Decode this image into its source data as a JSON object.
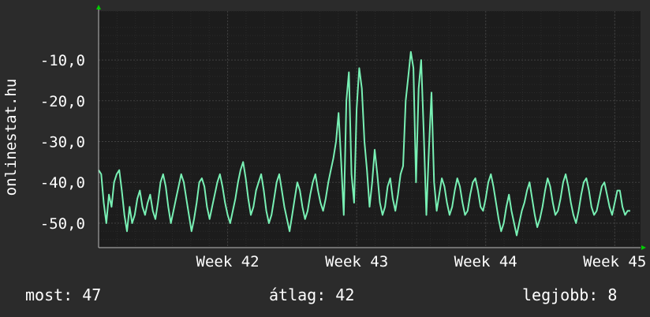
{
  "chart_data": {
    "type": "line",
    "title": "",
    "xlabel": "",
    "ylabel": "onlinestat.hu",
    "ylim": [
      -56,
      2
    ],
    "y_ticks": [
      -10,
      -20,
      -30,
      -40,
      -50
    ],
    "y_tick_labels": [
      "-10,0",
      "-20,0",
      "-30,0",
      "-40,0",
      "-50,0"
    ],
    "x_ticks": [
      42,
      43,
      44,
      45
    ],
    "x_tick_labels": [
      "Week 42",
      "Week 43",
      "Week 44",
      "Week 45"
    ],
    "xlim": [
      41.0,
      45.2
    ],
    "grid": true,
    "colors": {
      "background": "#2b2b2b",
      "plot_background": "#1c1c1c",
      "grid_major": "#3f3f3f",
      "grid_minor": "#2a2a2a",
      "line": "#78f0b4",
      "axis_arrow": "#00cc00"
    },
    "series": [
      {
        "x": [
          41.0,
          41.02,
          41.04,
          41.06,
          41.08,
          41.1,
          41.12,
          41.14,
          41.16,
          41.18,
          41.2,
          41.22,
          41.24,
          41.26,
          41.28,
          41.3,
          41.32,
          41.34,
          41.36,
          41.38,
          41.4,
          41.42,
          41.44,
          41.46,
          41.48,
          41.5,
          41.52,
          41.54,
          41.56,
          41.58,
          41.6,
          41.62,
          41.64,
          41.66,
          41.68,
          41.7,
          41.72,
          41.74,
          41.76,
          41.78,
          41.8,
          41.82,
          41.84,
          41.86,
          41.88,
          41.9,
          41.92,
          41.94,
          41.96,
          41.98,
          42.0,
          42.02,
          42.04,
          42.06,
          42.08,
          42.1,
          42.12,
          42.14,
          42.16,
          42.18,
          42.2,
          42.22,
          42.24,
          42.26,
          42.28,
          42.3,
          42.32,
          42.34,
          42.36,
          42.38,
          42.4,
          42.42,
          42.44,
          42.46,
          42.48,
          42.5,
          42.52,
          42.54,
          42.56,
          42.58,
          42.6,
          42.62,
          42.64,
          42.66,
          42.68,
          42.7,
          42.72,
          42.74,
          42.76,
          42.78,
          42.8,
          42.82,
          42.84,
          42.86,
          42.88,
          42.9,
          42.92,
          42.94,
          42.96,
          42.98,
          43.0,
          43.02,
          43.04,
          43.06,
          43.08,
          43.1,
          43.12,
          43.14,
          43.16,
          43.18,
          43.2,
          43.22,
          43.24,
          43.26,
          43.28,
          43.3,
          43.32,
          43.34,
          43.36,
          43.38,
          43.4,
          43.42,
          43.44,
          43.46,
          43.48,
          43.5,
          43.52,
          43.54,
          43.56,
          43.58,
          43.6,
          43.62,
          43.64,
          43.66,
          43.68,
          43.7,
          43.72,
          43.74,
          43.76,
          43.78,
          43.8,
          43.82,
          43.84,
          43.86,
          43.88,
          43.9,
          43.92,
          43.94,
          43.96,
          43.98,
          44.0,
          44.02,
          44.04,
          44.06,
          44.08,
          44.1,
          44.12,
          44.14,
          44.16,
          44.18,
          44.2,
          44.22,
          44.24,
          44.26,
          44.28,
          44.3,
          44.32,
          44.34,
          44.36,
          44.38,
          44.4,
          44.42,
          44.44,
          44.46,
          44.48,
          44.5,
          44.52,
          44.54,
          44.56,
          44.58,
          44.6,
          44.62,
          44.64,
          44.66,
          44.68,
          44.7,
          44.72,
          44.74,
          44.76,
          44.78,
          44.8,
          44.82,
          44.84,
          44.86,
          44.88,
          44.9,
          44.92,
          44.94,
          44.96,
          44.98,
          45.0,
          45.02,
          45.04,
          45.06,
          45.08,
          45.1,
          45.12
        ],
        "y": [
          -37,
          -38,
          -45,
          -50,
          -43,
          -46,
          -40,
          -38,
          -37,
          -42,
          -48,
          -52,
          -46,
          -50,
          -48,
          -44,
          -42,
          -46,
          -48,
          -45,
          -43,
          -47,
          -49,
          -45,
          -40,
          -38,
          -41,
          -46,
          -50,
          -47,
          -44,
          -41,
          -38,
          -40,
          -44,
          -48,
          -52,
          -49,
          -45,
          -40,
          -39,
          -41,
          -46,
          -49,
          -46,
          -43,
          -40,
          -38,
          -41,
          -45,
          -48,
          -50,
          -47,
          -44,
          -40,
          -37,
          -35,
          -39,
          -44,
          -48,
          -46,
          -42,
          -40,
          -38,
          -42,
          -47,
          -50,
          -48,
          -44,
          -40,
          -38,
          -42,
          -46,
          -49,
          -52,
          -48,
          -44,
          -40,
          -42,
          -46,
          -49,
          -47,
          -43,
          -40,
          -38,
          -42,
          -45,
          -47,
          -44,
          -40,
          -37,
          -34,
          -30,
          -23,
          -35,
          -48,
          -20,
          -13,
          -38,
          -45,
          -22,
          -12,
          -17,
          -30,
          -37,
          -46,
          -40,
          -32,
          -38,
          -45,
          -48,
          -46,
          -41,
          -39,
          -44,
          -47,
          -43,
          -38,
          -36,
          -20,
          -14,
          -8,
          -12,
          -40,
          -17,
          -10,
          -28,
          -48,
          -32,
          -18,
          -40,
          -47,
          -43,
          -39,
          -41,
          -45,
          -48,
          -46,
          -42,
          -39,
          -41,
          -45,
          -48,
          -47,
          -43,
          -40,
          -39,
          -42,
          -46,
          -47,
          -44,
          -40,
          -38,
          -41,
          -45,
          -49,
          -52,
          -50,
          -46,
          -43,
          -47,
          -50,
          -53,
          -50,
          -47,
          -45,
          -42,
          -40,
          -44,
          -48,
          -51,
          -49,
          -46,
          -42,
          -39,
          -41,
          -45,
          -48,
          -47,
          -44,
          -40,
          -38,
          -41,
          -45,
          -48,
          -50,
          -47,
          -43,
          -40,
          -39,
          -42,
          -46,
          -48,
          -47,
          -44,
          -41,
          -40,
          -43,
          -46,
          -48,
          -45,
          -42,
          -42,
          -46,
          -48,
          -47,
          -47
        ]
      }
    ]
  },
  "footer": {
    "current": "most: 47",
    "average": "átlag: 42",
    "best": "legjobb: 8"
  }
}
